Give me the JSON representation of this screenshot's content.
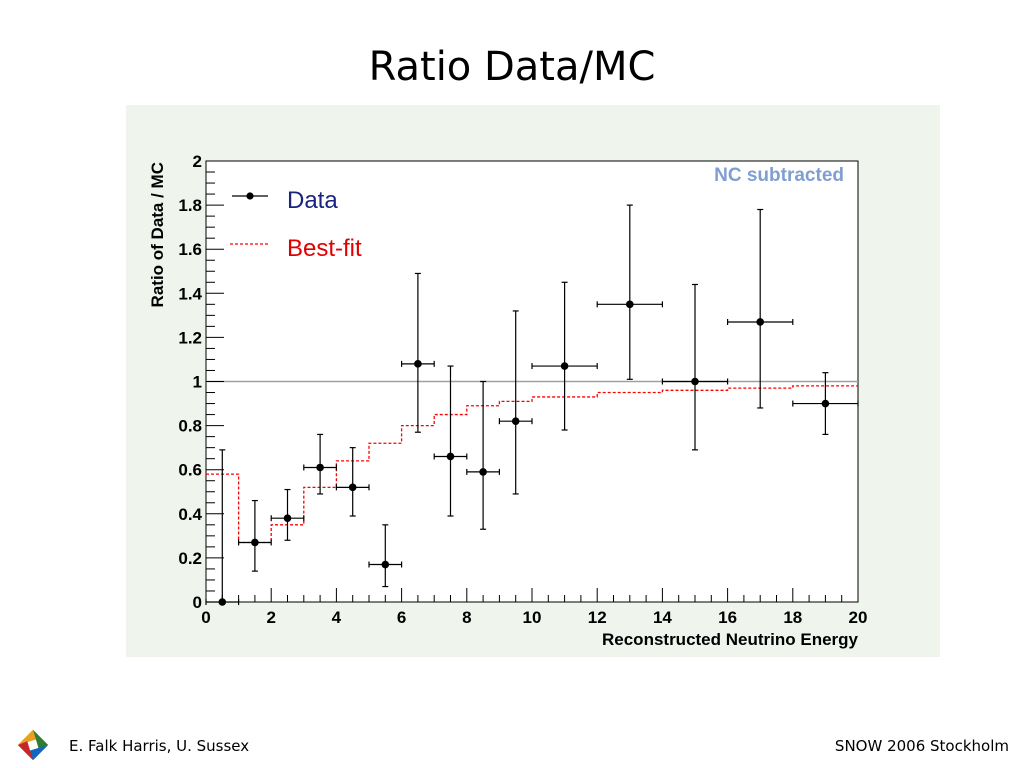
{
  "slide": {
    "title": "Ratio Data/MC",
    "footer_left": "E. Falk Harris, U. Sussex",
    "footer_right": "SNOW 2006 Stockholm"
  },
  "chart_data": {
    "type": "scatter",
    "title": "",
    "annotation": "NC subtracted",
    "xlabel": "Reconstructed Neutrino Energy",
    "ylabel": "Ratio of Data / MC",
    "xlim": [
      0,
      20
    ],
    "ylim": [
      0,
      2
    ],
    "x_ticks": [
      0,
      2,
      4,
      6,
      8,
      10,
      12,
      14,
      16,
      18,
      20
    ],
    "y_ticks": [
      0,
      0.2,
      0.4,
      0.6,
      0.8,
      1,
      1.2,
      1.4,
      1.6,
      1.8,
      2
    ],
    "x_tick_labels": [
      "0",
      "2",
      "4",
      "6",
      "8",
      "10",
      "12",
      "14",
      "16",
      "18",
      "20"
    ],
    "y_tick_labels": [
      "0",
      "0.2",
      "0.4",
      "0.6",
      "0.8",
      "1",
      "1.2",
      "1.4",
      "1.6",
      "1.8",
      "2"
    ],
    "reference_line": 1,
    "legend": {
      "placement": "top-left",
      "entries": [
        "Data",
        "Best-fit"
      ]
    },
    "colors": {
      "data": "#000000",
      "best_fit": "#ff0000",
      "annotation": "#7f9fd1",
      "reference": "#a0a0a0",
      "panel": "#eff5ec"
    },
    "series": [
      {
        "name": "Data",
        "style": "points-with-errors",
        "points": [
          {
            "x": 0.5,
            "y": 0.0,
            "xerr": 0.5,
            "yerr_low": 0.0,
            "yerr_high": 0.69
          },
          {
            "x": 1.5,
            "y": 0.27,
            "xerr": 0.5,
            "yerr_low": 0.13,
            "yerr_high": 0.19
          },
          {
            "x": 2.5,
            "y": 0.38,
            "xerr": 0.5,
            "yerr_low": 0.1,
            "yerr_high": 0.13
          },
          {
            "x": 3.5,
            "y": 0.61,
            "xerr": 0.5,
            "yerr_low": 0.12,
            "yerr_high": 0.15
          },
          {
            "x": 4.5,
            "y": 0.52,
            "xerr": 0.5,
            "yerr_low": 0.13,
            "yerr_high": 0.18
          },
          {
            "x": 5.5,
            "y": 0.17,
            "xerr": 0.5,
            "yerr_low": 0.1,
            "yerr_high": 0.18
          },
          {
            "x": 6.5,
            "y": 1.08,
            "xerr": 0.5,
            "yerr_low": 0.31,
            "yerr_high": 0.41
          },
          {
            "x": 7.5,
            "y": 0.66,
            "xerr": 0.5,
            "yerr_low": 0.27,
            "yerr_high": 0.41
          },
          {
            "x": 8.5,
            "y": 0.59,
            "xerr": 0.5,
            "yerr_low": 0.26,
            "yerr_high": 0.41
          },
          {
            "x": 9.5,
            "y": 0.82,
            "xerr": 0.5,
            "yerr_low": 0.33,
            "yerr_high": 0.5
          },
          {
            "x": 11.0,
            "y": 1.07,
            "xerr": 1.0,
            "yerr_low": 0.29,
            "yerr_high": 0.38
          },
          {
            "x": 13.0,
            "y": 1.35,
            "xerr": 1.0,
            "yerr_low": 0.34,
            "yerr_high": 0.45
          },
          {
            "x": 15.0,
            "y": 1.0,
            "xerr": 1.0,
            "yerr_low": 0.31,
            "yerr_high": 0.44
          },
          {
            "x": 17.0,
            "y": 1.27,
            "xerr": 1.0,
            "yerr_low": 0.39,
            "yerr_high": 0.51
          },
          {
            "x": 19.0,
            "y": 0.9,
            "xerr": 1.0,
            "yerr_low": 0.14,
            "yerr_high": 0.14
          }
        ]
      },
      {
        "name": "Best-fit",
        "style": "dashed-step",
        "bins": [
          {
            "x0": 0,
            "x1": 1,
            "y": 0.58
          },
          {
            "x0": 1,
            "x1": 2,
            "y": 0.27
          },
          {
            "x0": 2,
            "x1": 3,
            "y": 0.35
          },
          {
            "x0": 3,
            "x1": 4,
            "y": 0.52
          },
          {
            "x0": 4,
            "x1": 5,
            "y": 0.64
          },
          {
            "x0": 5,
            "x1": 6,
            "y": 0.72
          },
          {
            "x0": 6,
            "x1": 7,
            "y": 0.8
          },
          {
            "x0": 7,
            "x1": 8,
            "y": 0.85
          },
          {
            "x0": 8,
            "x1": 9,
            "y": 0.89
          },
          {
            "x0": 9,
            "x1": 10,
            "y": 0.91
          },
          {
            "x0": 10,
            "x1": 12,
            "y": 0.93
          },
          {
            "x0": 12,
            "x1": 14,
            "y": 0.95
          },
          {
            "x0": 14,
            "x1": 16,
            "y": 0.96
          },
          {
            "x0": 16,
            "x1": 18,
            "y": 0.97
          },
          {
            "x0": 18,
            "x1": 20,
            "y": 0.98
          }
        ]
      }
    ]
  }
}
